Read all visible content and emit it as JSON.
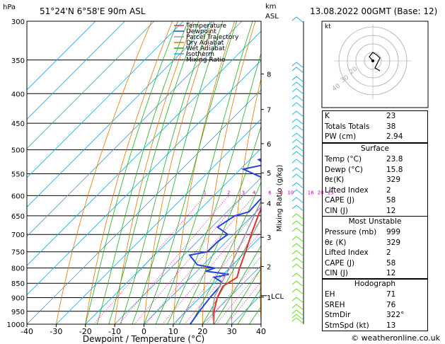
{
  "header": {
    "hpa_label": "hPa",
    "location": "51°24'N  6°58'E  90m  ASL",
    "km_label": "km",
    "asl_label": "ASL",
    "date": "13.08.2022  00GMT  (Base: 12)"
  },
  "chart_data": {
    "type": "line",
    "title": "",
    "xlabel": "Dewpoint / Temperature (°C)",
    "ylabel": "hPa",
    "right_ylabel": "Mixing Ratio (g/kg)",
    "xlim": [
      -40,
      40
    ],
    "ylim": [
      1000,
      300
    ],
    "x_ticks": [
      -40,
      -30,
      -20,
      -10,
      0,
      10,
      20,
      30,
      40
    ],
    "y_ticks": [
      300,
      350,
      400,
      450,
      500,
      550,
      600,
      650,
      700,
      750,
      800,
      850,
      900,
      950,
      1000
    ],
    "km_ticks": [
      {
        "km": "8",
        "p": 370
      },
      {
        "km": "7",
        "p": 426
      },
      {
        "km": "6",
        "p": 488
      },
      {
        "km": "5",
        "p": 548
      },
      {
        "km": "4",
        "p": 618
      },
      {
        "km": "3",
        "p": 708
      },
      {
        "km": "2",
        "p": 795
      },
      {
        "km": "1",
        "p": 898
      }
    ],
    "lcl_label": "LCL",
    "lcl_p": 893,
    "mixing_ratio_labels": [
      "1",
      "2",
      "3",
      "4",
      "6",
      "8",
      "10",
      "16",
      "20",
      "25"
    ],
    "mixing_ratio_values": [
      1,
      2,
      3,
      4,
      6,
      8,
      10,
      16,
      20,
      25
    ],
    "legend": {
      "position": "top-right",
      "items": [
        {
          "name": "Temperature",
          "color": "#e03030",
          "style": "solid"
        },
        {
          "name": "Dewpoint",
          "color": "#2244dd",
          "style": "solid"
        },
        {
          "name": "Parcel Trajectory",
          "color": "#999999",
          "style": "solid"
        },
        {
          "name": "Dry Adiabat",
          "color": "#e07800",
          "style": "solid"
        },
        {
          "name": "Wet Adiabat",
          "color": "#22aa22",
          "style": "solid"
        },
        {
          "name": "Isotherm",
          "color": "#22aadd",
          "style": "solid"
        },
        {
          "name": "Mixing Ratio",
          "color": "#cc00aa",
          "style": "dotted"
        }
      ]
    },
    "series": [
      {
        "name": "Temperature",
        "color": "#e03030",
        "points": [
          [
            1000,
            23.8
          ],
          [
            950,
            19.5
          ],
          [
            900,
            16.0
          ],
          [
            860,
            14.0
          ],
          [
            830,
            15.8
          ],
          [
            800,
            13.5
          ],
          [
            750,
            10.0
          ],
          [
            700,
            6.0
          ],
          [
            650,
            2.0
          ],
          [
            600,
            -2.0
          ],
          [
            550,
            -6.0
          ],
          [
            500,
            -10.5
          ],
          [
            450,
            -15.0
          ],
          [
            400,
            -22.0
          ],
          [
            350,
            -30.0
          ],
          [
            300,
            -40.0
          ]
        ]
      },
      {
        "name": "Dewpoint",
        "color": "#2244dd",
        "points": [
          [
            1000,
            15.8
          ],
          [
            950,
            14.5
          ],
          [
            900,
            13.5
          ],
          [
            860,
            13.0
          ],
          [
            845,
            12.0
          ],
          [
            830,
            8.0
          ],
          [
            820,
            12.0
          ],
          [
            810,
            3.0
          ],
          [
            800,
            5.0
          ],
          [
            790,
            -2.0
          ],
          [
            760,
            -8.0
          ],
          [
            750,
            -3.0
          ],
          [
            720,
            -3.0
          ],
          [
            700,
            -2.0
          ],
          [
            680,
            -8.0
          ],
          [
            650,
            -6.0
          ],
          [
            640,
            -2.5
          ],
          [
            600,
            -3.0
          ],
          [
            580,
            -6.0
          ],
          [
            570,
            -4.0
          ],
          [
            540,
            -19.0
          ],
          [
            530,
            -13.0
          ],
          [
            520,
            -17.0
          ],
          [
            510,
            -12.0
          ],
          [
            500,
            -13.0
          ],
          [
            490,
            -10.0
          ],
          [
            470,
            -14.0
          ],
          [
            465,
            -16.0
          ],
          [
            455,
            -10.0
          ],
          [
            450,
            -16.0
          ],
          [
            440,
            -16.0
          ],
          [
            420,
            -20.0
          ],
          [
            400,
            -24.0
          ],
          [
            350,
            -29.0
          ],
          [
            300,
            -40.0
          ]
        ]
      },
      {
        "name": "Parcel Trajectory",
        "color": "#999999",
        "points": [
          [
            1000,
            23.8
          ],
          [
            950,
            19.0
          ],
          [
            893,
            14.5
          ],
          [
            850,
            12.5
          ],
          [
            800,
            10.0
          ],
          [
            700,
            4.0
          ],
          [
            600,
            -3.0
          ],
          [
            500,
            -12.0
          ],
          [
            400,
            -24.0
          ],
          [
            300,
            -41.0
          ]
        ]
      }
    ]
  },
  "hodograph": {
    "label": "kt",
    "ring_labels": [
      "40",
      "30",
      "20"
    ]
  },
  "indices": {
    "k": {
      "label": "K",
      "value": "23"
    },
    "tt": {
      "label": "Totals Totals",
      "value": "38"
    },
    "pw": {
      "label": "PW (cm)",
      "value": "2.94"
    }
  },
  "surface": {
    "title": "Surface",
    "rows": [
      {
        "label": "Temp (°C)",
        "value": "23.8"
      },
      {
        "label": "Dewp (°C)",
        "value": "15.8"
      },
      {
        "label": "θε(K)",
        "value": "329"
      },
      {
        "label": "Lifted Index",
        "value": "2"
      },
      {
        "label": "CAPE (J)",
        "value": "58"
      },
      {
        "label": "CIN (J)",
        "value": "12"
      }
    ]
  },
  "most_unstable": {
    "title": "Most Unstable",
    "rows": [
      {
        "label": "Pressure (mb)",
        "value": "999"
      },
      {
        "label": "θε (K)",
        "value": "329"
      },
      {
        "label": "Lifted Index",
        "value": "2"
      },
      {
        "label": "CAPE (J)",
        "value": "58"
      },
      {
        "label": "CIN (J)",
        "value": "12"
      }
    ]
  },
  "hodograph_table": {
    "title": "Hodograph",
    "rows": [
      {
        "label": "EH",
        "value": "71"
      },
      {
        "label": "SREH",
        "value": "76"
      },
      {
        "label": "StmDir",
        "value": "322°"
      },
      {
        "label": "StmSpd (kt)",
        "value": "13"
      }
    ]
  },
  "footer": {
    "credit": "© weatheronline.co.uk"
  }
}
